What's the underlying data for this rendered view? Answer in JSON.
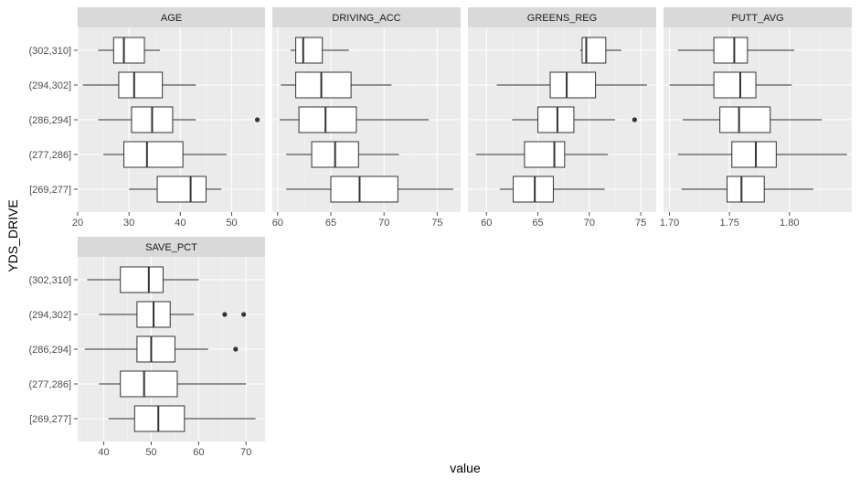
{
  "chart_data": {
    "type": "boxplot",
    "xlabel": "value",
    "ylabel": "YDS_DRIVE",
    "categories": [
      "[269,277]",
      "(277,286]",
      "(286,294]",
      "(294,302]",
      "(302,310]"
    ],
    "facets": [
      {
        "strip": "AGE",
        "xlim": [
          20,
          56.5
        ],
        "ticks": [
          20,
          30,
          40,
          50
        ],
        "boxes": [
          {
            "category": "[269,277]",
            "whisker_low": 30,
            "q1": 35.5,
            "median": 42,
            "q3": 45,
            "whisker_high": 48,
            "outliers": []
          },
          {
            "category": "(277,286]",
            "whisker_low": 25,
            "q1": 29,
            "median": 33.5,
            "q3": 40.5,
            "whisker_high": 49,
            "outliers": []
          },
          {
            "category": "(286,294]",
            "whisker_low": 24,
            "q1": 30.5,
            "median": 34.5,
            "q3": 38.5,
            "whisker_high": 43,
            "outliers": [
              55
            ]
          },
          {
            "category": "(294,302]",
            "whisker_low": 21,
            "q1": 28,
            "median": 31,
            "q3": 36.5,
            "whisker_high": 43,
            "outliers": []
          },
          {
            "category": "(302,310]",
            "whisker_low": 24,
            "q1": 27,
            "median": 29,
            "q3": 33,
            "whisker_high": 36,
            "outliers": []
          }
        ]
      },
      {
        "strip": "DRIVING_ACC",
        "xlim": [
          59.5,
          77.2
        ],
        "ticks": [
          60,
          65,
          70,
          75
        ],
        "boxes": [
          {
            "category": "[269,277]",
            "whisker_low": 60.8,
            "q1": 65,
            "median": 67.7,
            "q3": 71.3,
            "whisker_high": 76.5,
            "outliers": []
          },
          {
            "category": "(277,286]",
            "whisker_low": 60.8,
            "q1": 63.2,
            "median": 65.4,
            "q3": 67.6,
            "whisker_high": 71.4,
            "outliers": []
          },
          {
            "category": "(286,294]",
            "whisker_low": 60.2,
            "q1": 62,
            "median": 64.5,
            "q3": 67.4,
            "whisker_high": 74.2,
            "outliers": []
          },
          {
            "category": "(294,302]",
            "whisker_low": 60.3,
            "q1": 61.7,
            "median": 64.1,
            "q3": 66.9,
            "whisker_high": 70.7,
            "outliers": []
          },
          {
            "category": "(302,310]",
            "whisker_low": 61.2,
            "q1": 61.7,
            "median": 62.4,
            "q3": 64.2,
            "whisker_high": 66.7,
            "outliers": []
          }
        ]
      },
      {
        "strip": "GREENS_REG",
        "xlim": [
          58.2,
          76.5
        ],
        "ticks": [
          60,
          65,
          70,
          75
        ],
        "boxes": [
          {
            "category": "[269,277]",
            "whisker_low": 61.3,
            "q1": 62.6,
            "median": 64.7,
            "q3": 66.5,
            "whisker_high": 71.5,
            "outliers": []
          },
          {
            "category": "(277,286]",
            "whisker_low": 59,
            "q1": 63.7,
            "median": 66.6,
            "q3": 67.6,
            "whisker_high": 71.8,
            "outliers": []
          },
          {
            "category": "(286,294]",
            "whisker_low": 62.5,
            "q1": 65,
            "median": 66.9,
            "q3": 68.5,
            "whisker_high": 72.5,
            "outliers": [
              74.4
            ]
          },
          {
            "category": "(294,302]",
            "whisker_low": 61,
            "q1": 66.2,
            "median": 67.8,
            "q3": 70.6,
            "whisker_high": 75.6,
            "outliers": []
          },
          {
            "category": "(302,310]",
            "whisker_low": 69.1,
            "q1": 69.3,
            "median": 69.7,
            "q3": 71.6,
            "whisker_high": 73.1,
            "outliers": []
          }
        ]
      },
      {
        "strip": "PUTT_AVG",
        "xlim": [
          1.695,
          1.852
        ],
        "ticks": [
          1.7,
          1.75,
          1.8
        ],
        "tick_labels": [
          "1.70",
          "1.75",
          "1.80"
        ],
        "boxes": [
          {
            "category": "[269,277]",
            "whisker_low": 1.71,
            "q1": 1.748,
            "median": 1.76,
            "q3": 1.779,
            "whisker_high": 1.82,
            "outliers": []
          },
          {
            "category": "(277,286]",
            "whisker_low": 1.707,
            "q1": 1.752,
            "median": 1.772,
            "q3": 1.789,
            "whisker_high": 1.848,
            "outliers": []
          },
          {
            "category": "(286,294]",
            "whisker_low": 1.711,
            "q1": 1.742,
            "median": 1.758,
            "q3": 1.784,
            "whisker_high": 1.827,
            "outliers": []
          },
          {
            "category": "(294,302]",
            "whisker_low": 1.7,
            "q1": 1.737,
            "median": 1.759,
            "q3": 1.772,
            "whisker_high": 1.802,
            "outliers": []
          },
          {
            "category": "(302,310]",
            "whisker_low": 1.707,
            "q1": 1.737,
            "median": 1.754,
            "q3": 1.765,
            "whisker_high": 1.804,
            "outliers": []
          }
        ]
      },
      {
        "strip": "SAVE_PCT",
        "xlim": [
          34.5,
          74
        ],
        "ticks": [
          40,
          50,
          60,
          70
        ],
        "boxes": [
          {
            "category": "[269,277]",
            "whisker_low": 41,
            "q1": 46.5,
            "median": 51.5,
            "q3": 57,
            "whisker_high": 72,
            "outliers": []
          },
          {
            "category": "(277,286]",
            "whisker_low": 39,
            "q1": 43.5,
            "median": 48.5,
            "q3": 55.5,
            "whisker_high": 70,
            "outliers": []
          },
          {
            "category": "(286,294]",
            "whisker_low": 36,
            "q1": 47,
            "median": 50,
            "q3": 55,
            "whisker_high": 62,
            "outliers": [
              67.8
            ]
          },
          {
            "category": "(294,302]",
            "whisker_low": 39,
            "q1": 47,
            "median": 50.5,
            "q3": 54,
            "whisker_high": 59,
            "outliers": [
              65.5,
              69.5
            ]
          },
          {
            "category": "(302,310]",
            "whisker_low": 36.5,
            "q1": 43.5,
            "median": 49.5,
            "q3": 52.5,
            "whisker_high": 60,
            "outliers": []
          }
        ]
      }
    ],
    "colors": {
      "panel_bg": "#ebebeb",
      "grid_major": "#ffffff",
      "grid_minor": "#f5f5f5",
      "strip_bg": "#d9d9d9",
      "box_fill": "#ffffff",
      "line": "#333333",
      "text": "#1a1a1a",
      "axis_text": "#4d4d4d"
    }
  }
}
